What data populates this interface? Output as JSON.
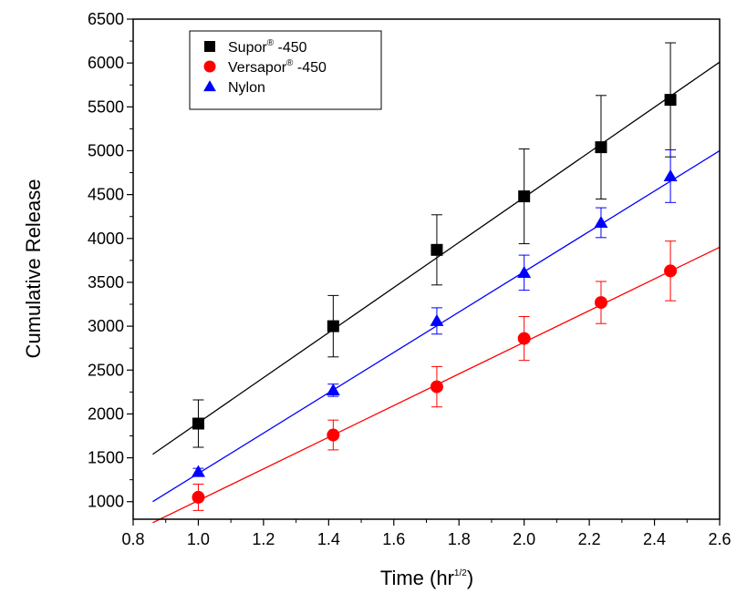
{
  "chart_data": {
    "type": "scatter",
    "title": "",
    "xlabel": {
      "text": "Time (hr",
      "sup": "1/2",
      "suffix": ")"
    },
    "ylabel": "Cumulative Release",
    "xlim": [
      0.8,
      2.6
    ],
    "ylim": [
      800,
      6500
    ],
    "x_ticks": [
      "0.8",
      "1.0",
      "1.2",
      "1.4",
      "1.6",
      "1.8",
      "2.0",
      "2.2",
      "2.4",
      "2.6"
    ],
    "y_ticks": [
      "1000",
      "1500",
      "2000",
      "2500",
      "3000",
      "3500",
      "4000",
      "4500",
      "5000",
      "5500",
      "6000",
      "6500"
    ],
    "grid": false,
    "legend_position": "top-left",
    "series": [
      {
        "name": "Supor",
        "name_sup": "®",
        "name_suffix": " -450",
        "marker": "square",
        "color": "#000000",
        "x": [
          1.0,
          1.414,
          1.732,
          2.0,
          2.236,
          2.449
        ],
        "y": [
          1890,
          3000,
          3870,
          4480,
          5040,
          5580
        ],
        "err": [
          270,
          350,
          400,
          540,
          590,
          650
        ],
        "fit": {
          "x": [
            0.86,
            2.6
          ],
          "y": [
            1540,
            6010
          ]
        }
      },
      {
        "name": "Versapor",
        "name_sup": "®",
        "name_suffix": " -450",
        "marker": "circle",
        "color": "#ff0000",
        "x": [
          1.0,
          1.414,
          1.732,
          2.0,
          2.236,
          2.449
        ],
        "y": [
          1050,
          1760,
          2310,
          2860,
          3270,
          3630
        ],
        "err": [
          150,
          170,
          230,
          250,
          240,
          340
        ],
        "fit": {
          "x": [
            0.86,
            2.6
          ],
          "y": [
            760,
            3900
          ]
        }
      },
      {
        "name": "Nylon",
        "name_sup": "",
        "name_suffix": "",
        "marker": "triangle",
        "color": "#0000ff",
        "x": [
          1.0,
          1.414,
          1.732,
          2.0,
          2.236,
          2.449
        ],
        "y": [
          1340,
          2270,
          3060,
          3610,
          4180,
          4710
        ],
        "err": [
          40,
          70,
          150,
          200,
          170,
          300
        ],
        "fit": {
          "x": [
            0.86,
            2.6
          ],
          "y": [
            1000,
            5000
          ]
        }
      }
    ]
  }
}
